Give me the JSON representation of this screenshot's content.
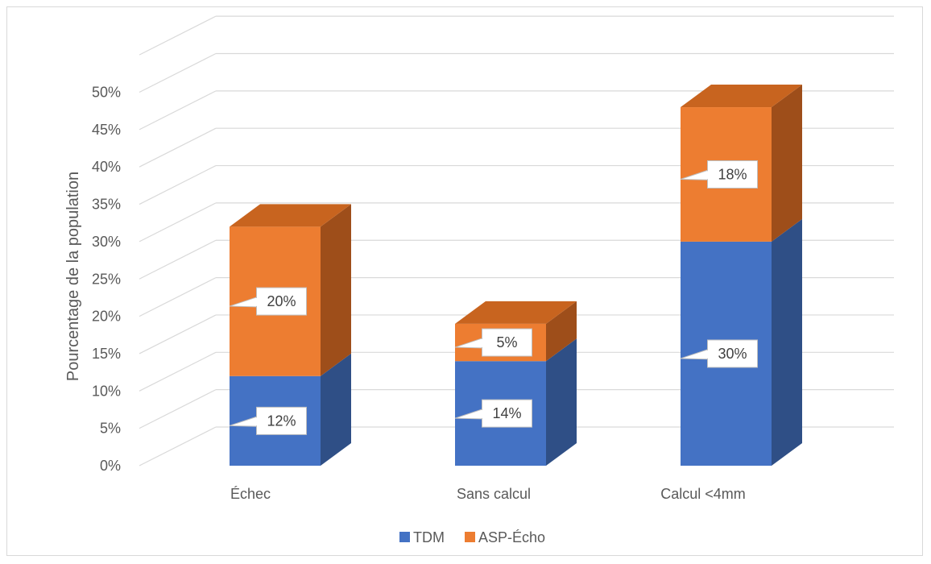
{
  "chart_data": {
    "type": "bar",
    "stacked": true,
    "three_d": true,
    "categories": [
      "Échec",
      "Sans calcul",
      "Calcul <4mm"
    ],
    "series": [
      {
        "name": "TDM",
        "values": [
          12,
          14,
          30
        ],
        "labels": [
          "12%",
          "14%",
          "30%"
        ]
      },
      {
        "name": "ASP-Écho",
        "values": [
          20,
          5,
          18
        ],
        "labels": [
          "20%",
          "5%",
          "18%"
        ]
      }
    ],
    "ylabel": "Pourcentage de la population",
    "ylim": [
      0,
      50
    ],
    "yticks": [
      "0%",
      "5%",
      "10%",
      "15%",
      "20%",
      "25%",
      "30%",
      "35%",
      "40%",
      "45%",
      "50%"
    ],
    "grid": true,
    "legend_position": "bottom"
  },
  "colors": {
    "tdm_front": "#4472C4",
    "tdm_top": "#3A62AA",
    "tdm_side": "#2F4F86",
    "asp_front": "#ED7D31",
    "asp_top": "#C8641F",
    "asp_side": "#9E4E1A",
    "grid": "#d9d9d9",
    "text": "#595959"
  }
}
